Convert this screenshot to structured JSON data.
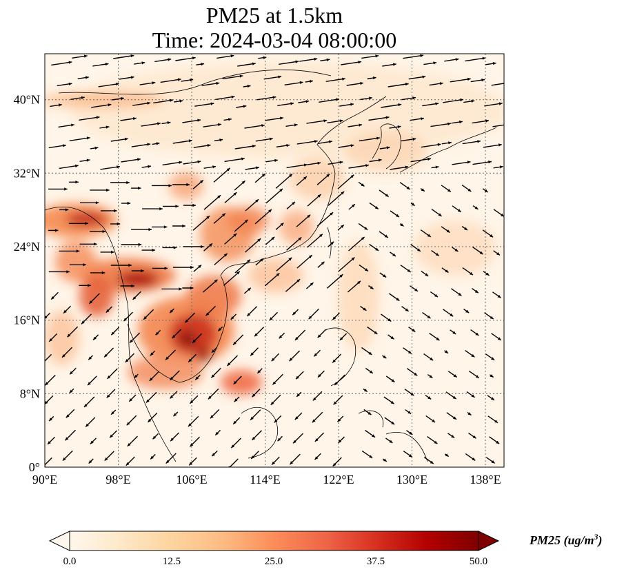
{
  "title": {
    "line1": "PM25 at 1.5km",
    "line2": "Time: 2024-03-04 08:00:00"
  },
  "map": {
    "extent": {
      "lon": [
        90,
        140
      ],
      "lat": [
        0,
        45
      ]
    },
    "x_ticks": [
      "90°E",
      "98°E",
      "106°E",
      "114°E",
      "122°E",
      "130°E",
      "138°E"
    ],
    "y_ticks": [
      "0°",
      "8°N",
      "16°N",
      "24°N",
      "32°N",
      "40°N"
    ],
    "gridlines": true,
    "wind_vectors": true
  },
  "colorbar": {
    "label_main": "PM25 (ug/m",
    "label_sup": "3",
    "label_end": ")",
    "ticks": [
      "0.0",
      "12.5",
      "25.0",
      "37.5",
      "50.0"
    ],
    "cmap": "OrRd",
    "colors": [
      "#fff7ec",
      "#fee8c8",
      "#fdd49e",
      "#fdbb84",
      "#fc8d59",
      "#ef6548",
      "#d7301f",
      "#b30000",
      "#7f0000"
    ]
  }
}
